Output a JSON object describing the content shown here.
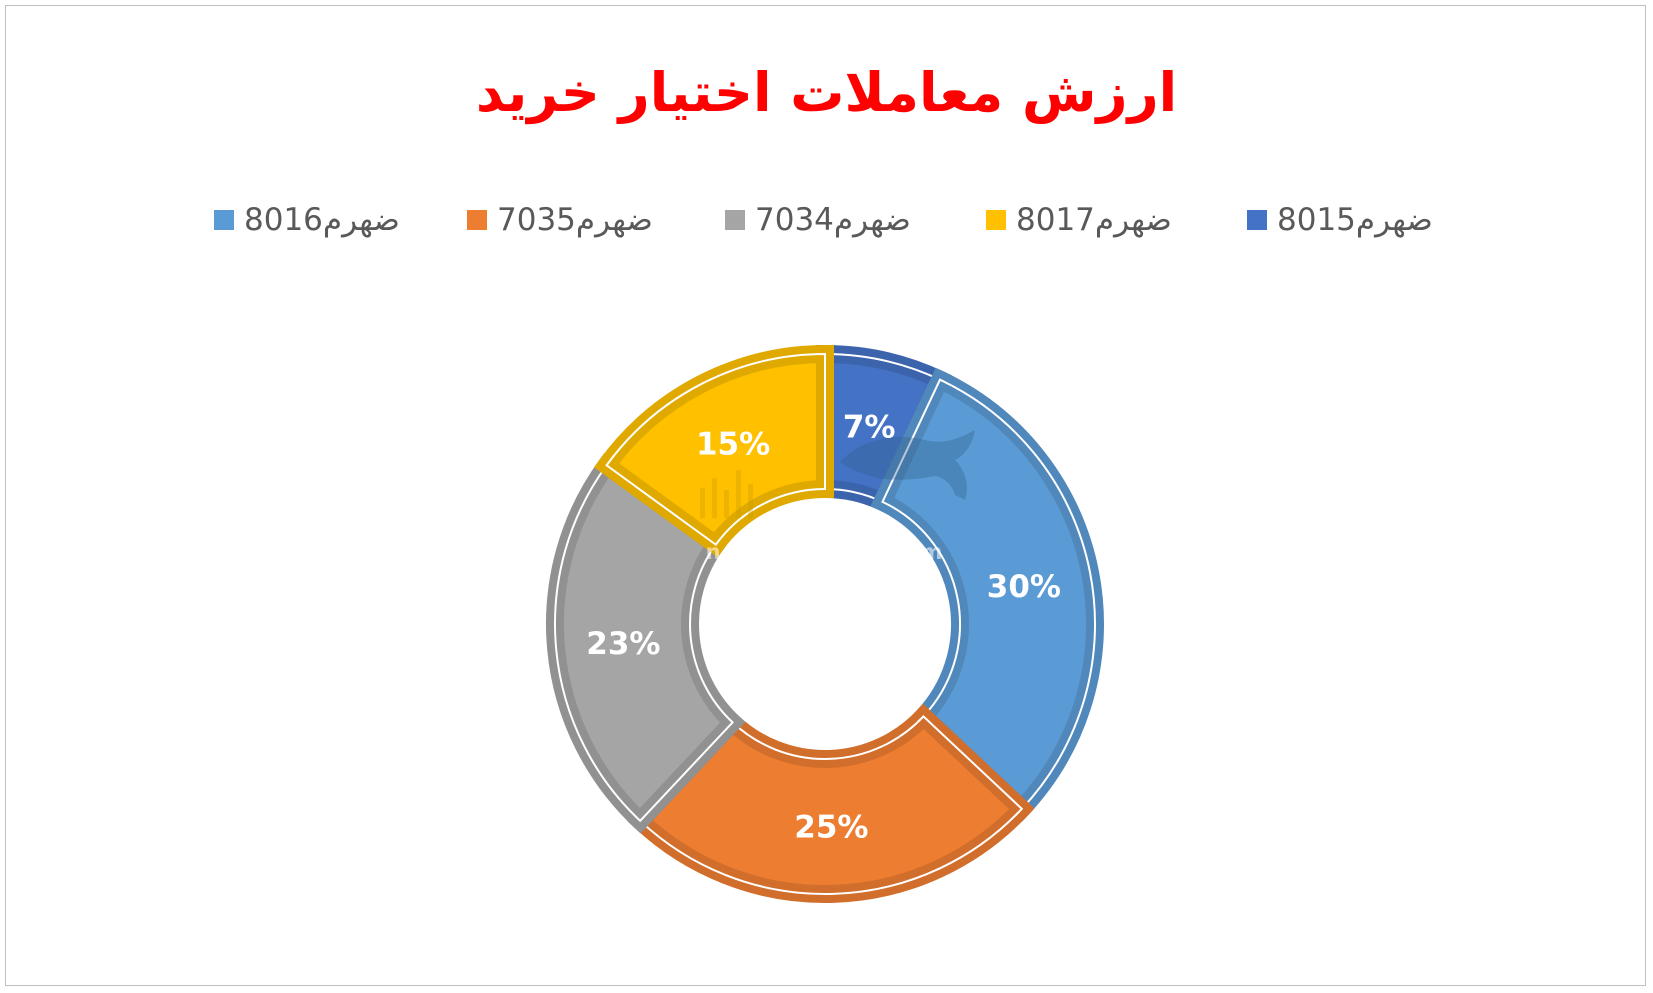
{
  "chart_data": {
    "type": "pie",
    "variant": "doughnut",
    "title": "ارزش معاملات اختیار خرید",
    "legend_position": "top",
    "categories": [
      "ضهرم8015",
      "ضهرم8016",
      "ضهرم7035",
      "ضهرم7034",
      "ضهرم8017"
    ],
    "values": [
      7,
      30,
      25,
      23,
      15
    ],
    "value_labels": [
      "7%",
      "30%",
      "25%",
      "23%",
      "15%"
    ],
    "colors": [
      "#4472C4",
      "#5B9BD5",
      "#ED7D31",
      "#A5A5A5",
      "#FFC000"
    ],
    "legend_order": [
      "ضهرم8016",
      "ضهرم7035",
      "ضهرم7034",
      "ضهرم8017",
      "ضهرم8015"
    ],
    "legend_colors": [
      "#5B9BD5",
      "#ED7D31",
      "#A5A5A5",
      "#FFC000",
      "#4472C4"
    ]
  },
  "watermark": {
    "text": "nabzebourse.com"
  }
}
